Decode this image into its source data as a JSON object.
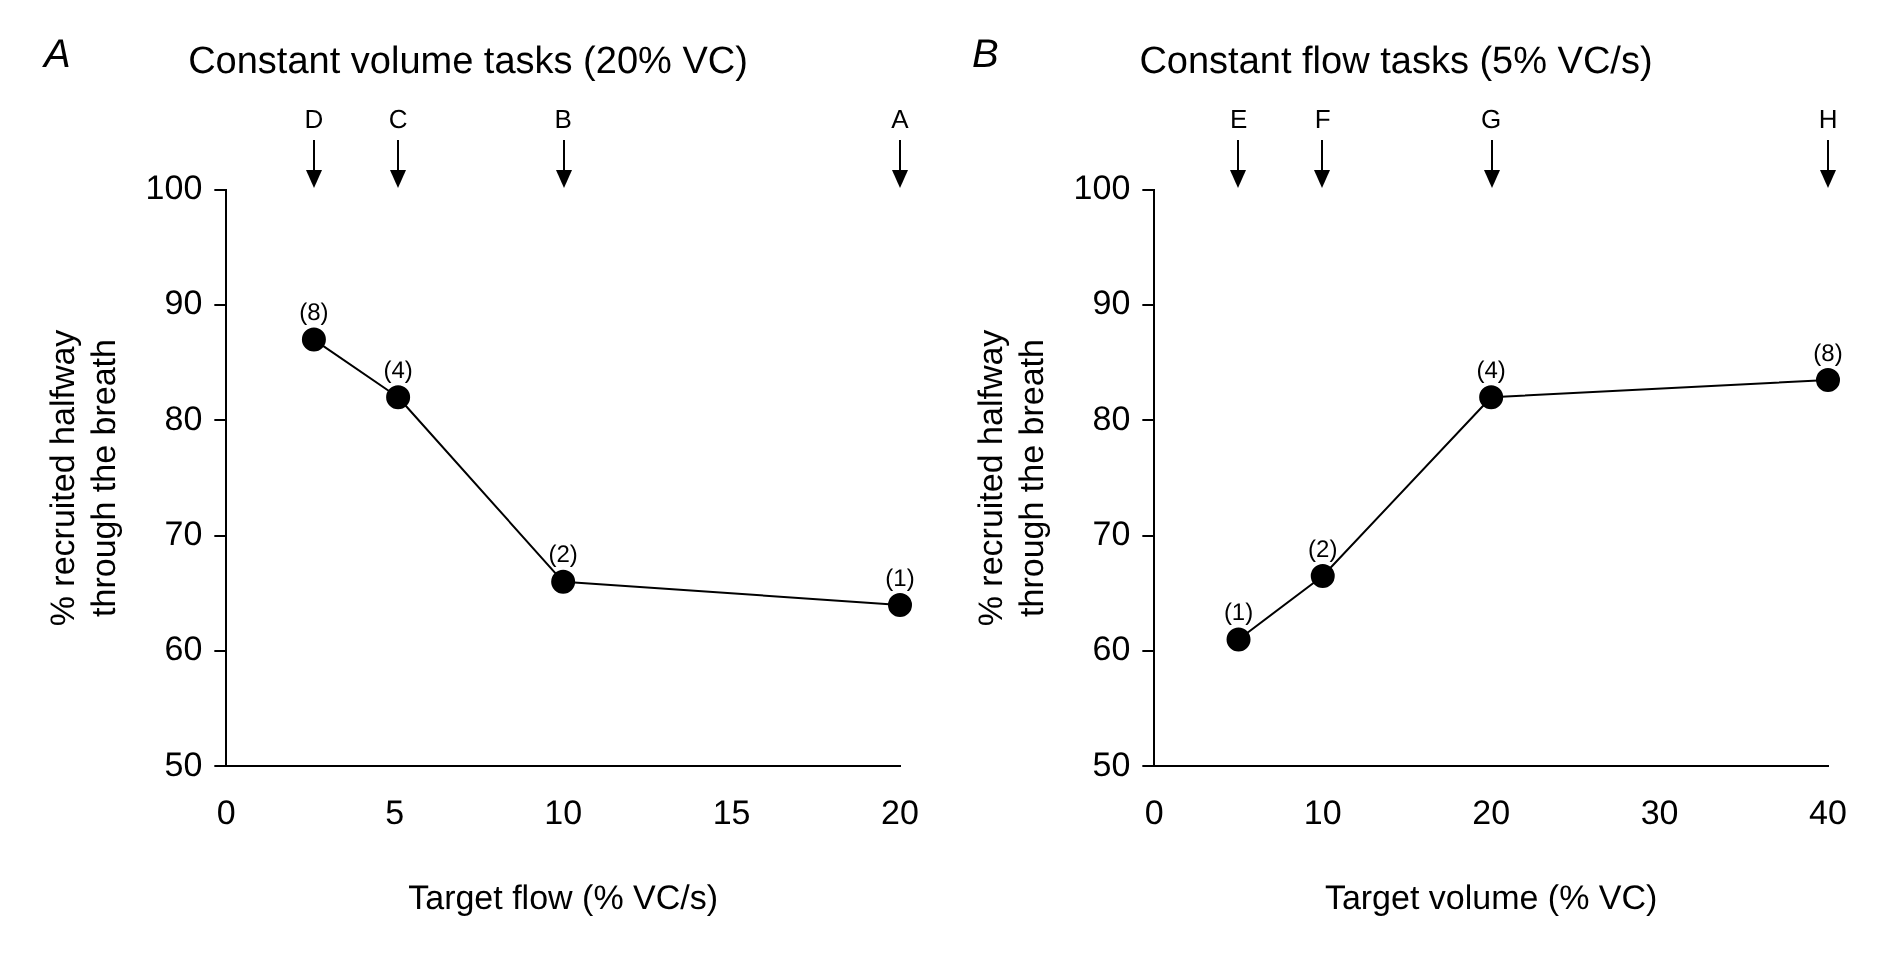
{
  "chart_data": [
    {
      "type": "line",
      "title": "Constant volume tasks (20% VC)",
      "xlabel": "Target flow (% VC/s)",
      "ylabel": "% recruited halfway through the breath",
      "x": [
        2.6,
        5.1,
        10,
        20
      ],
      "values": [
        87,
        82,
        66,
        64
      ],
      "color": "#000000",
      "marker": "circle",
      "xlim": [
        0,
        20
      ],
      "xticks": [
        0,
        5,
        10,
        15,
        20
      ],
      "ylim": [
        50,
        100
      ],
      "yticks": [
        50,
        60,
        70,
        80,
        90,
        100
      ],
      "grid": false,
      "annotations": [
        "A",
        {
          "text": "(8)",
          "x": 2.6,
          "y": 87
        },
        {
          "text": "(4)",
          "x": 5.1,
          "y": 82
        },
        {
          "text": "(2)",
          "x": 10,
          "y": 66
        },
        {
          "text": "(1)",
          "x": 20,
          "y": 64
        },
        "D",
        "C",
        "B",
        "A"
      ]
    },
    {
      "type": "line",
      "title": "Constant flow tasks (5% VC/s)",
      "xlabel": "Target volume (% VC)",
      "ylabel": "% recruited halfway through the breath",
      "x": [
        5,
        10,
        20,
        40
      ],
      "values": [
        61,
        66.5,
        82,
        83.5
      ],
      "color": "#000000",
      "marker": "circle",
      "xlim": [
        0,
        40
      ],
      "xticks": [
        0,
        10,
        20,
        30,
        40
      ],
      "ylim": [
        50,
        100
      ],
      "yticks": [
        50,
        60,
        70,
        80,
        90,
        100
      ],
      "grid": false,
      "annotations": [
        "B",
        {
          "text": "(1)",
          "x": 5,
          "y": 61
        },
        {
          "text": "(2)",
          "x": 10,
          "y": 66.5
        },
        {
          "text": "(4)",
          "x": 20,
          "y": 82
        },
        {
          "text": "(8)",
          "x": 40,
          "y": 83.5
        },
        "E",
        "F",
        "G",
        "H"
      ]
    }
  ]
}
